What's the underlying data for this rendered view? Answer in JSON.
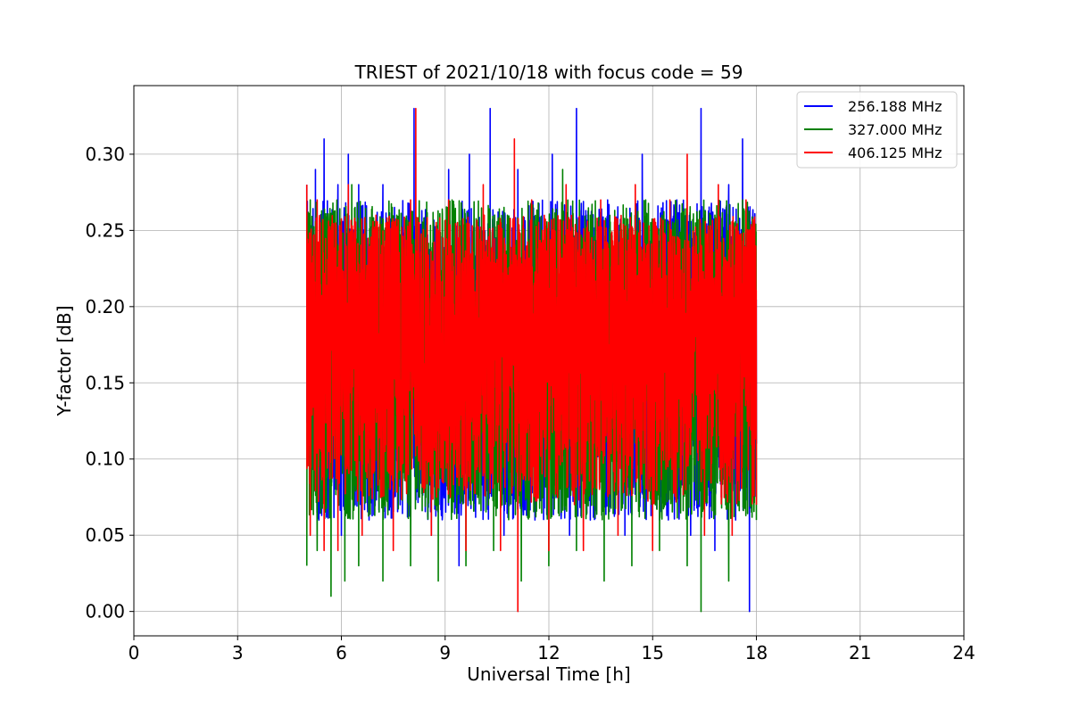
{
  "chart_data": {
    "type": "line",
    "title": "TRIEST of 2021/10/18 with focus code = 59",
    "xlabel": "Universal Time [h]",
    "ylabel": "Y-factor [dB]",
    "xlim": [
      0,
      24
    ],
    "ylim": [
      -0.016,
      0.345
    ],
    "x_ticks": [
      0,
      3,
      6,
      9,
      12,
      15,
      18,
      21,
      24
    ],
    "x_tick_labels": [
      "0",
      "3",
      "6",
      "9",
      "12",
      "15",
      "18",
      "21",
      "24"
    ],
    "y_ticks": [
      0.0,
      0.05,
      0.1,
      0.15,
      0.2,
      0.25,
      0.3
    ],
    "y_tick_labels": [
      "0.00",
      "0.05",
      "0.10",
      "0.15",
      "0.20",
      "0.25",
      "0.30"
    ],
    "grid": true,
    "legend_position": "top-right",
    "x_range_of_data": [
      5.0,
      18.0
    ],
    "series": [
      {
        "name": "256.188 MHz",
        "color": "#0000ff",
        "x": [
          5.0,
          5.1,
          5.25,
          5.35,
          5.5,
          5.75,
          5.9,
          6.0,
          6.2,
          6.4,
          6.5,
          6.8,
          7.2,
          7.7,
          8.1,
          8.6,
          9.1,
          9.4,
          9.7,
          10.1,
          10.3,
          10.7,
          11.1,
          11.6,
          12.1,
          12.6,
          12.8,
          13.2,
          13.7,
          14.2,
          14.7,
          15.2,
          15.7,
          16.1,
          16.4,
          16.8,
          17.2,
          17.4,
          17.6,
          17.8,
          18.0
        ],
        "y": [
          0.28,
          0.1,
          0.29,
          0.06,
          0.31,
          0.12,
          0.28,
          0.05,
          0.3,
          0.07,
          0.28,
          0.06,
          0.28,
          0.07,
          0.33,
          0.05,
          0.29,
          0.03,
          0.3,
          0.08,
          0.33,
          0.05,
          0.29,
          0.06,
          0.3,
          0.05,
          0.33,
          0.06,
          0.27,
          0.05,
          0.3,
          0.06,
          0.27,
          0.05,
          0.33,
          0.04,
          0.28,
          0.06,
          0.31,
          0.0,
          0.11
        ]
      },
      {
        "name": "327.000 MHz",
        "color": "#008000",
        "x": [
          5.0,
          5.1,
          5.3,
          5.5,
          5.7,
          5.9,
          6.1,
          6.3,
          6.5,
          6.9,
          7.2,
          7.6,
          8.0,
          8.4,
          8.8,
          9.2,
          9.6,
          10.0,
          10.4,
          10.8,
          11.2,
          11.6,
          12.0,
          12.4,
          12.8,
          13.2,
          13.6,
          14.0,
          14.4,
          14.8,
          15.2,
          15.6,
          16.0,
          16.4,
          16.8,
          17.2,
          17.6,
          18.0
        ],
        "y": [
          0.03,
          0.27,
          0.04,
          0.26,
          0.01,
          0.24,
          0.02,
          0.28,
          0.03,
          0.24,
          0.02,
          0.26,
          0.03,
          0.25,
          0.02,
          0.27,
          0.03,
          0.25,
          0.04,
          0.26,
          0.02,
          0.25,
          0.03,
          0.29,
          0.04,
          0.26,
          0.02,
          0.25,
          0.03,
          0.27,
          0.04,
          0.25,
          0.03,
          0.0,
          0.26,
          0.02,
          0.27,
          0.06
        ]
      },
      {
        "name": "406.125 MHz",
        "color": "#ff0000",
        "x": [
          5.0,
          5.1,
          5.3,
          5.5,
          5.7,
          5.9,
          6.2,
          6.6,
          7.0,
          7.5,
          8.0,
          8.15,
          8.6,
          9.1,
          9.6,
          10.1,
          10.6,
          11.0,
          11.1,
          11.5,
          12.0,
          12.5,
          13.0,
          13.5,
          14.0,
          14.5,
          15.0,
          15.5,
          16.0,
          16.5,
          16.9,
          17.3,
          17.7,
          18.0
        ],
        "y": [
          0.28,
          0.05,
          0.27,
          0.04,
          0.25,
          0.04,
          0.28,
          0.05,
          0.26,
          0.04,
          0.27,
          0.33,
          0.05,
          0.27,
          0.04,
          0.28,
          0.04,
          0.31,
          0.0,
          0.27,
          0.04,
          0.28,
          0.04,
          0.27,
          0.05,
          0.28,
          0.04,
          0.27,
          0.3,
          0.05,
          0.28,
          0.05,
          0.27,
          0.07
        ]
      }
    ]
  }
}
